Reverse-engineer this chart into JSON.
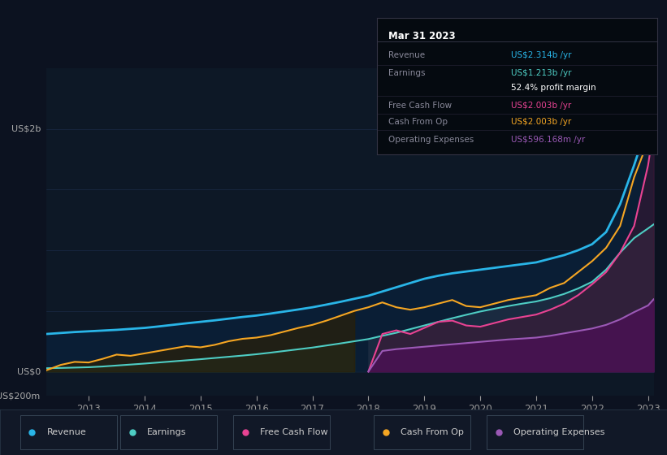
{
  "bg_color": "#0c1220",
  "plot_bg": "#0d1826",
  "legend_bg": "#111827",
  "tooltip_bg": "#050a10",
  "colors": {
    "revenue": "#29b5e8",
    "earnings": "#4ecdc4",
    "free_cash_flow": "#e84393",
    "cash_from_op": "#f5a623",
    "operating_expenses": "#9b59b6"
  },
  "ylabel_top": "US$2b",
  "ylabel_zero": "US$0",
  "ylabel_bottom": "-US$200m",
  "ylim": [
    -200,
    2500
  ],
  "tooltip": {
    "title": "Mar 31 2023",
    "rows": [
      {
        "label": "Revenue",
        "value": "US$2.314b /yr",
        "color": "#29b5e8"
      },
      {
        "label": "Earnings",
        "value": "US$1.213b /yr",
        "color": "#4ecdc4"
      },
      {
        "label": "",
        "value": "52.4% profit margin",
        "color": "#ffffff"
      },
      {
        "label": "Free Cash Flow",
        "value": "US$2.003b /yr",
        "color": "#e84393"
      },
      {
        "label": "Cash From Op",
        "value": "US$2.003b /yr",
        "color": "#f5a623"
      },
      {
        "label": "Operating Expenses",
        "value": "US$596.168m /yr",
        "color": "#9b59b6"
      }
    ]
  },
  "legend": [
    {
      "label": "Revenue",
      "color": "#29b5e8"
    },
    {
      "label": "Earnings",
      "color": "#4ecdc4"
    },
    {
      "label": "Free Cash Flow",
      "color": "#e84393"
    },
    {
      "label": "Cash From Op",
      "color": "#f5a623"
    },
    {
      "label": "Operating Expenses",
      "color": "#9b59b6"
    }
  ],
  "xtick_positions": [
    2013,
    2014,
    2015,
    2016,
    2017,
    2018,
    2019,
    2020,
    2021,
    2022,
    2023
  ],
  "xtick_labels": [
    "2013",
    "2014",
    "2015",
    "2016",
    "2017",
    "2018",
    "2019",
    "2020",
    "2021",
    "2022",
    "2023"
  ],
  "x": [
    2012.25,
    2012.5,
    2012.75,
    2013.0,
    2013.25,
    2013.5,
    2013.75,
    2014.0,
    2014.25,
    2014.5,
    2014.75,
    2015.0,
    2015.25,
    2015.5,
    2015.75,
    2016.0,
    2016.25,
    2016.5,
    2016.75,
    2017.0,
    2017.25,
    2017.5,
    2017.75,
    2018.0,
    2018.25,
    2018.5,
    2018.75,
    2019.0,
    2019.25,
    2019.5,
    2019.75,
    2020.0,
    2020.25,
    2020.5,
    2020.75,
    2021.0,
    2021.25,
    2021.5,
    2021.75,
    2022.0,
    2022.25,
    2022.5,
    2022.75,
    2023.0,
    2023.1
  ],
  "revenue": [
    310,
    318,
    326,
    332,
    338,
    344,
    352,
    360,
    372,
    385,
    398,
    410,
    422,
    436,
    450,
    462,
    478,
    495,
    512,
    530,
    552,
    575,
    600,
    625,
    660,
    695,
    730,
    765,
    790,
    810,
    825,
    840,
    855,
    870,
    885,
    900,
    930,
    960,
    1000,
    1050,
    1150,
    1380,
    1700,
    2050,
    2314
  ],
  "earnings": [
    28,
    30,
    33,
    36,
    42,
    50,
    58,
    66,
    75,
    84,
    93,
    102,
    112,
    122,
    132,
    143,
    156,
    170,
    184,
    198,
    215,
    232,
    250,
    268,
    295,
    320,
    350,
    380,
    410,
    440,
    468,
    495,
    518,
    540,
    560,
    578,
    605,
    640,
    685,
    740,
    840,
    980,
    1100,
    1180,
    1213
  ],
  "cash_from_op": [
    12,
    55,
    80,
    75,
    105,
    140,
    130,
    150,
    170,
    190,
    210,
    200,
    220,
    250,
    270,
    280,
    300,
    330,
    360,
    385,
    420,
    460,
    500,
    530,
    570,
    530,
    510,
    530,
    560,
    590,
    540,
    530,
    560,
    590,
    610,
    630,
    690,
    730,
    820,
    910,
    1020,
    1200,
    1600,
    1900,
    2003
  ],
  "earnings_fill_switch": 2018.0,
  "cash_from_op_fill_switch": 2018.0,
  "free_cash_flow_start": 2018.0,
  "operating_expenses_start": 2018.0,
  "free_cash_flow": [
    0,
    0,
    0,
    0,
    0,
    0,
    0,
    0,
    0,
    0,
    0,
    0,
    0,
    0,
    0,
    0,
    0,
    0,
    0,
    0,
    0,
    0,
    0,
    0,
    310,
    340,
    310,
    360,
    410,
    420,
    380,
    370,
    400,
    430,
    450,
    470,
    510,
    560,
    630,
    720,
    820,
    980,
    1200,
    1700,
    2003
  ],
  "operating_expenses": [
    0,
    0,
    0,
    0,
    0,
    0,
    0,
    0,
    0,
    0,
    0,
    0,
    0,
    0,
    0,
    0,
    0,
    0,
    0,
    0,
    0,
    0,
    0,
    0,
    170,
    185,
    195,
    205,
    215,
    225,
    235,
    245,
    255,
    265,
    272,
    280,
    295,
    315,
    335,
    355,
    385,
    430,
    490,
    545,
    596
  ]
}
